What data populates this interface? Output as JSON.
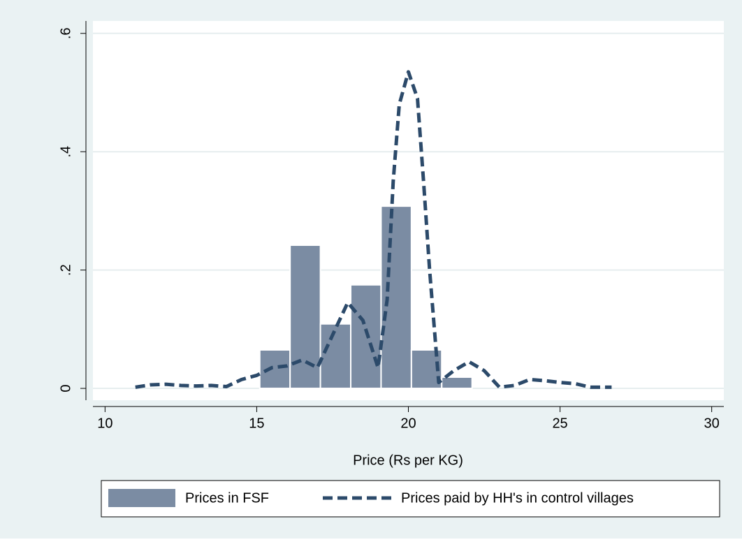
{
  "chart_data": {
    "type": "histogram",
    "x_label": "Price (Rs per KG)",
    "xlim": [
      9.6,
      30.4
    ],
    "xticks": [
      10,
      15,
      20,
      25,
      30
    ],
    "ylim": [
      -0.02,
      0.621
    ],
    "yticks": [
      0,
      {
        "value": 0.2,
        "label": ".2"
      },
      {
        "value": 0.4,
        "label": ".4"
      },
      {
        "value": 0.6,
        "label": ".6"
      }
    ],
    "grid": true,
    "series": [
      {
        "name": "Prices in FSF",
        "type": "histogram",
        "color": "#7b8ca3",
        "bins": [
          15.1,
          16.1,
          17.1,
          18.1,
          19.1,
          20.1,
          21.1,
          22.1
        ],
        "values": [
          0.065,
          0.242,
          0.109,
          0.175,
          0.308,
          0.065,
          0.019
        ]
      },
      {
        "name": "Prices paid by HH's in control villages",
        "type": "line",
        "color": "#2c4a6a",
        "x": [
          11,
          11.5,
          12,
          12.5,
          13,
          13.5,
          14,
          14.5,
          15,
          15.5,
          16,
          16.5,
          17,
          17.5,
          18,
          18.5,
          19,
          19.3,
          19.5,
          19.7,
          20,
          20.3,
          20.5,
          20.7,
          21,
          21.5,
          22,
          22.5,
          23,
          23.5,
          24,
          24.5,
          25,
          25.5,
          26,
          26.7
        ],
        "values": [
          0.002,
          0.006,
          0.007,
          0.005,
          0.004,
          0.005,
          0.003,
          0.015,
          0.022,
          0.035,
          0.038,
          0.048,
          0.035,
          0.09,
          0.145,
          0.115,
          0.035,
          0.15,
          0.35,
          0.48,
          0.535,
          0.49,
          0.35,
          0.2,
          0.01,
          0.03,
          0.045,
          0.03,
          0.002,
          0.005,
          0.015,
          0.013,
          0.01,
          0.008,
          0.002,
          0.002
        ]
      }
    ]
  }
}
